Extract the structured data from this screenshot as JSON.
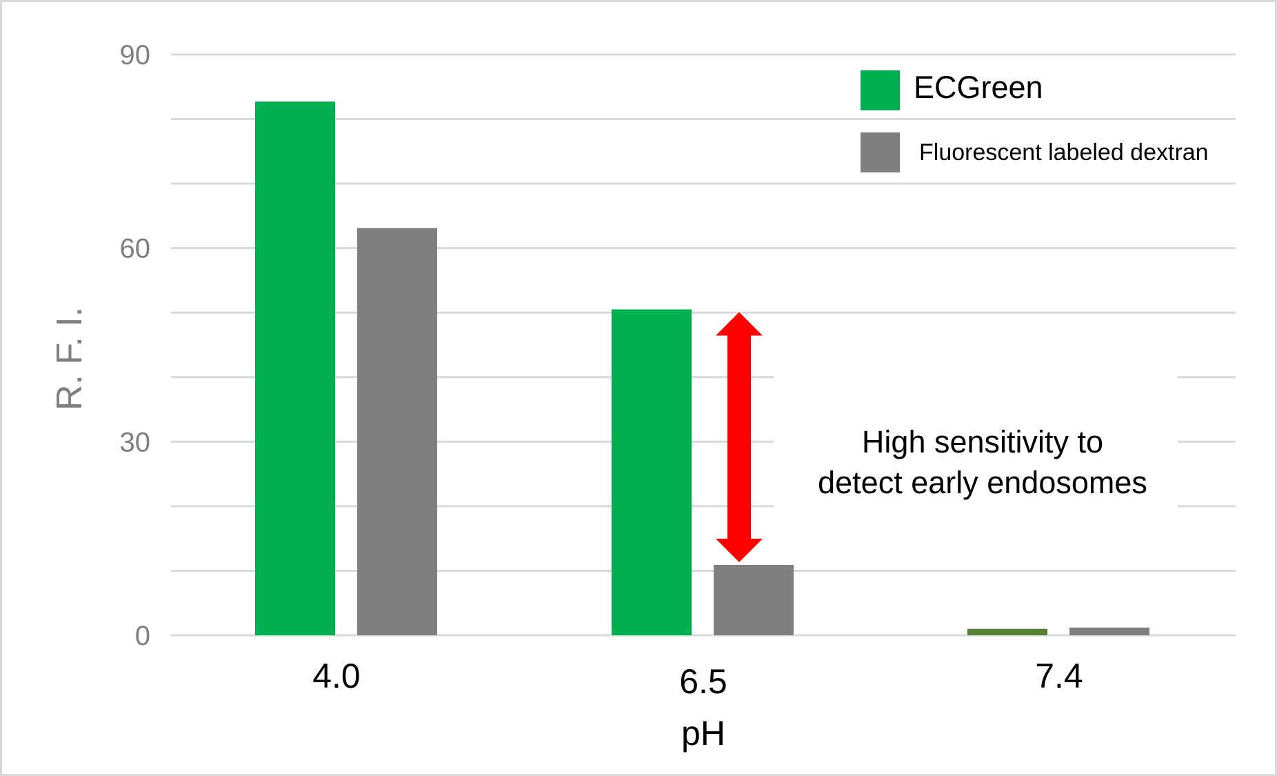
{
  "chart_data": {
    "type": "bar",
    "categories": [
      "4.0",
      "6.5",
      "7.4"
    ],
    "series": [
      {
        "name": "ECGreen",
        "values": [
          82.7,
          50.5,
          1.0
        ],
        "color": "#00b050"
      },
      {
        "name": "Fluorescent labeled dextran",
        "values": [
          63.1,
          10.9,
          1.2
        ],
        "color": "#7f7f7f"
      }
    ],
    "last_green_color": "#548235",
    "xlabel": "pH",
    "ylabel": "R. F. I.",
    "ylim": [
      0,
      90
    ],
    "yticks": [
      "0",
      "30",
      "60",
      "90"
    ],
    "grid": true,
    "legend_position": "top-right",
    "annotation": {
      "lines": [
        "High sensitivity to",
        "detect early endosomes"
      ],
      "arrow_color": "#ff0000",
      "arrow_from": 50.5,
      "arrow_to": 10.9
    }
  }
}
